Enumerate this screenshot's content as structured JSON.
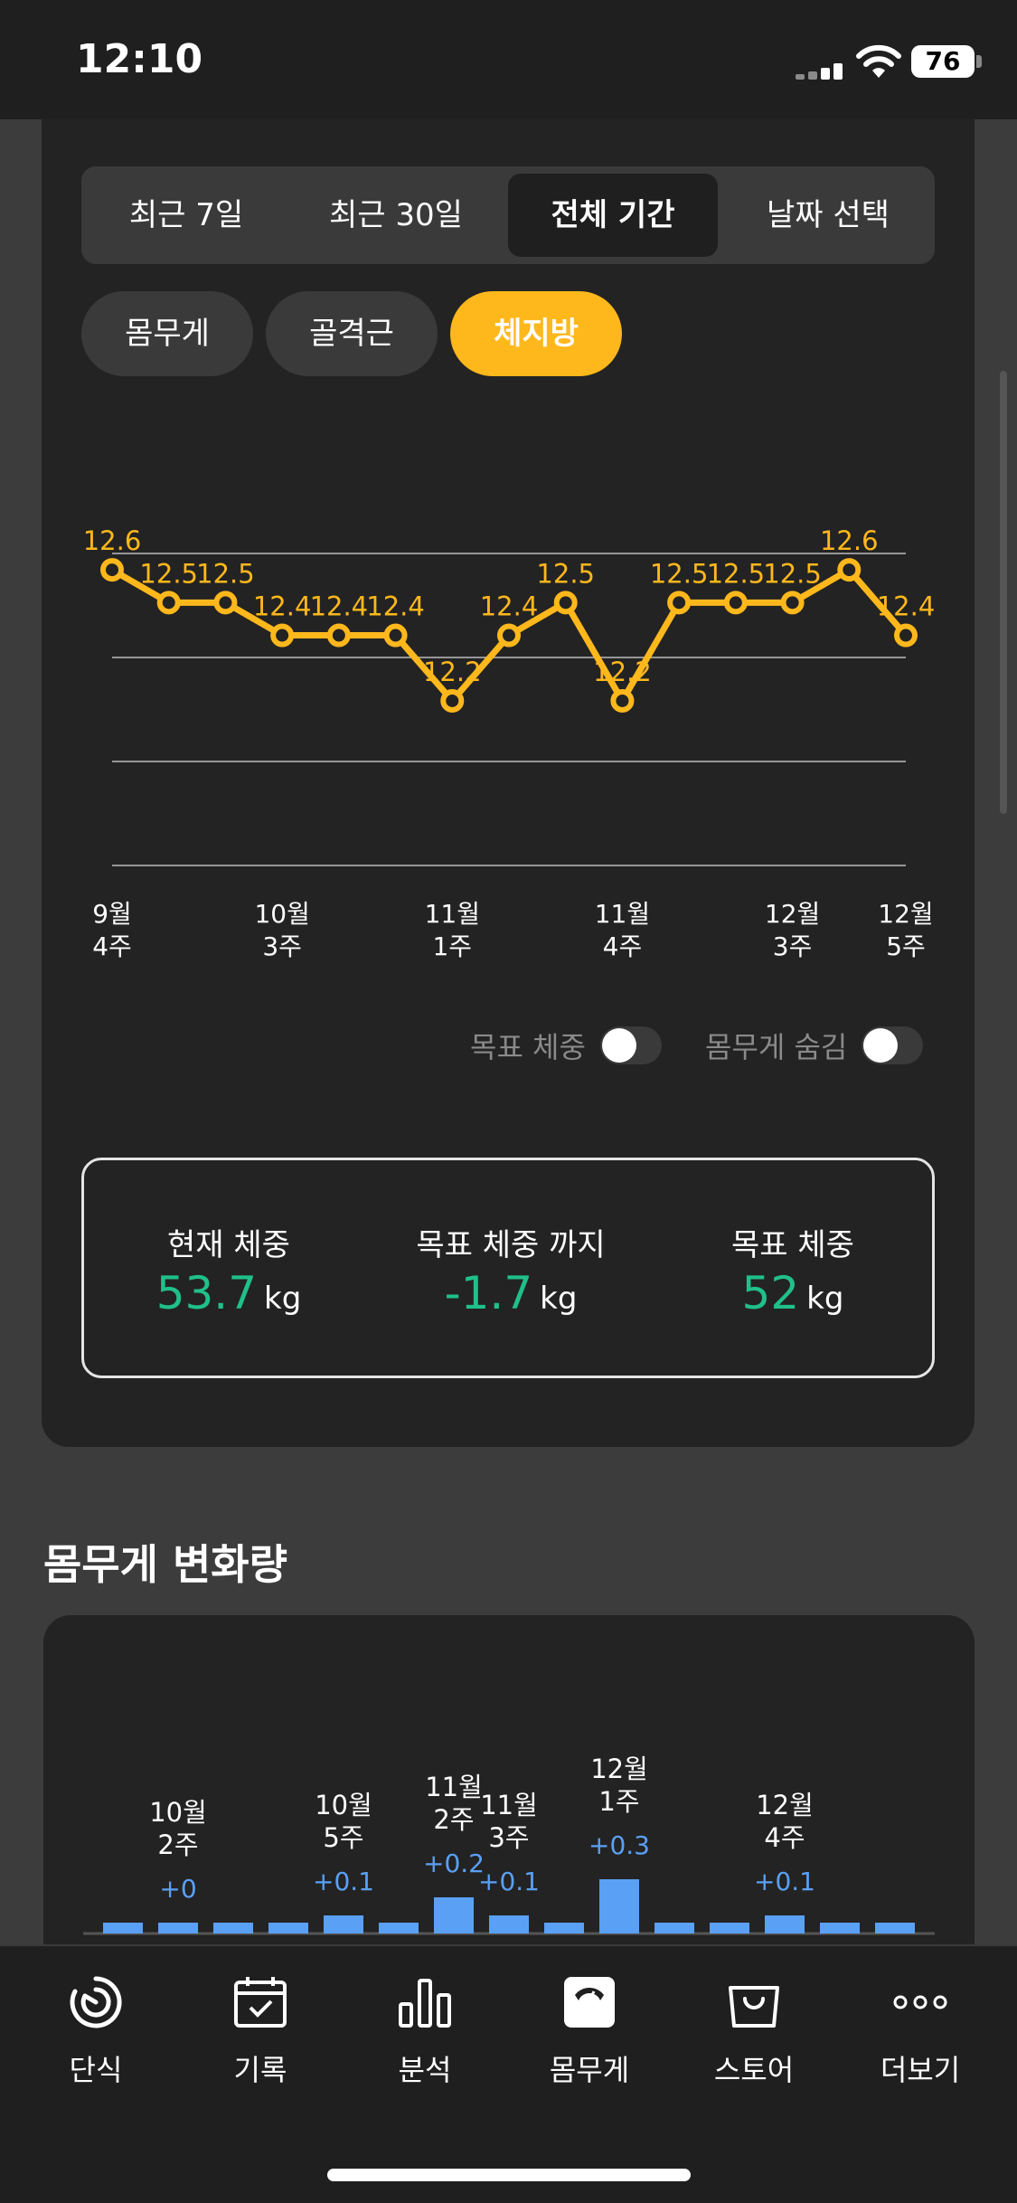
{
  "status_bar": {
    "time": "12:10",
    "battery": "76"
  },
  "period_tabs": [
    {
      "label": "최근 7일",
      "active": false
    },
    {
      "label": "최근 30일",
      "active": false
    },
    {
      "label": "전체 기간",
      "active": true
    },
    {
      "label": "날짜 선택",
      "active": false
    }
  ],
  "metric_pills": [
    {
      "label": "몸무게",
      "active": false
    },
    {
      "label": "골격근",
      "active": false
    },
    {
      "label": "체지방",
      "active": true
    }
  ],
  "chart_data": [
    {
      "type": "line",
      "title": "",
      "xlabel": "",
      "ylabel": "",
      "color": "#ffb81c",
      "grid": true,
      "ylim": [
        11.7,
        12.65
      ],
      "x_tick_labels": [
        "9월\n4주",
        "10월\n3주",
        "11월\n1주",
        "11월\n4주",
        "12월\n3주",
        "12월\n5주"
      ],
      "x_tick_index": [
        0,
        3,
        6,
        9,
        12,
        14
      ],
      "series": [
        {
          "values": [
            12.6,
            12.5,
            12.5,
            12.4,
            12.4,
            12.4,
            12.2,
            12.4,
            12.5,
            12.2,
            12.5,
            12.5,
            12.5,
            12.6,
            12.4
          ]
        }
      ],
      "value_labels": [
        "12.6",
        "12.5",
        "12.5",
        "12.4",
        "12.4",
        "12.4",
        "12.2",
        "12.4",
        "12.5",
        "12.2",
        "12.5",
        "12.5",
        "12.5",
        "12.6",
        "12.4"
      ]
    },
    {
      "type": "bar",
      "title": "",
      "color": "#5aa0f5",
      "categories": [
        "",
        "10월\n2주",
        "",
        "",
        "10월\n5주",
        "",
        "11월\n2주",
        "11월\n3주",
        "",
        "12월\n1주",
        "",
        "",
        "12월\n4주",
        "",
        ""
      ],
      "values": [
        0,
        0,
        0,
        0,
        0.1,
        0,
        0.2,
        0.1,
        0,
        0.3,
        0,
        0,
        0.1,
        0,
        0
      ],
      "labels": [
        "",
        "+0",
        "",
        "",
        "+0.1",
        "",
        "+0.2",
        "+0.1",
        "",
        "+0.3",
        "",
        "",
        "+0.1",
        "",
        ""
      ]
    }
  ],
  "toggles": [
    {
      "label": "목표 체중",
      "on": false
    },
    {
      "label": "몸무게 숨김",
      "on": false
    }
  ],
  "summary": [
    {
      "label": "현재 체중",
      "value": "53.7",
      "unit": "kg"
    },
    {
      "label": "목표 체중 까지",
      "value": "-1.7",
      "unit": "kg"
    },
    {
      "label": "목표 체중",
      "value": "52",
      "unit": "kg"
    }
  ],
  "change_section": {
    "title": "몸무게 변화량"
  },
  "tab_bar": [
    {
      "label": "단식",
      "icon": "timer-icon",
      "active": false
    },
    {
      "label": "기록",
      "icon": "calendar-check-icon",
      "active": false
    },
    {
      "label": "분석",
      "icon": "bar-chart-icon",
      "active": false
    },
    {
      "label": "몸무게",
      "icon": "scale-icon",
      "active": true
    },
    {
      "label": "스토어",
      "icon": "shopping-bag-icon",
      "active": false
    },
    {
      "label": "더보기",
      "icon": "more-icon",
      "active": false
    }
  ]
}
